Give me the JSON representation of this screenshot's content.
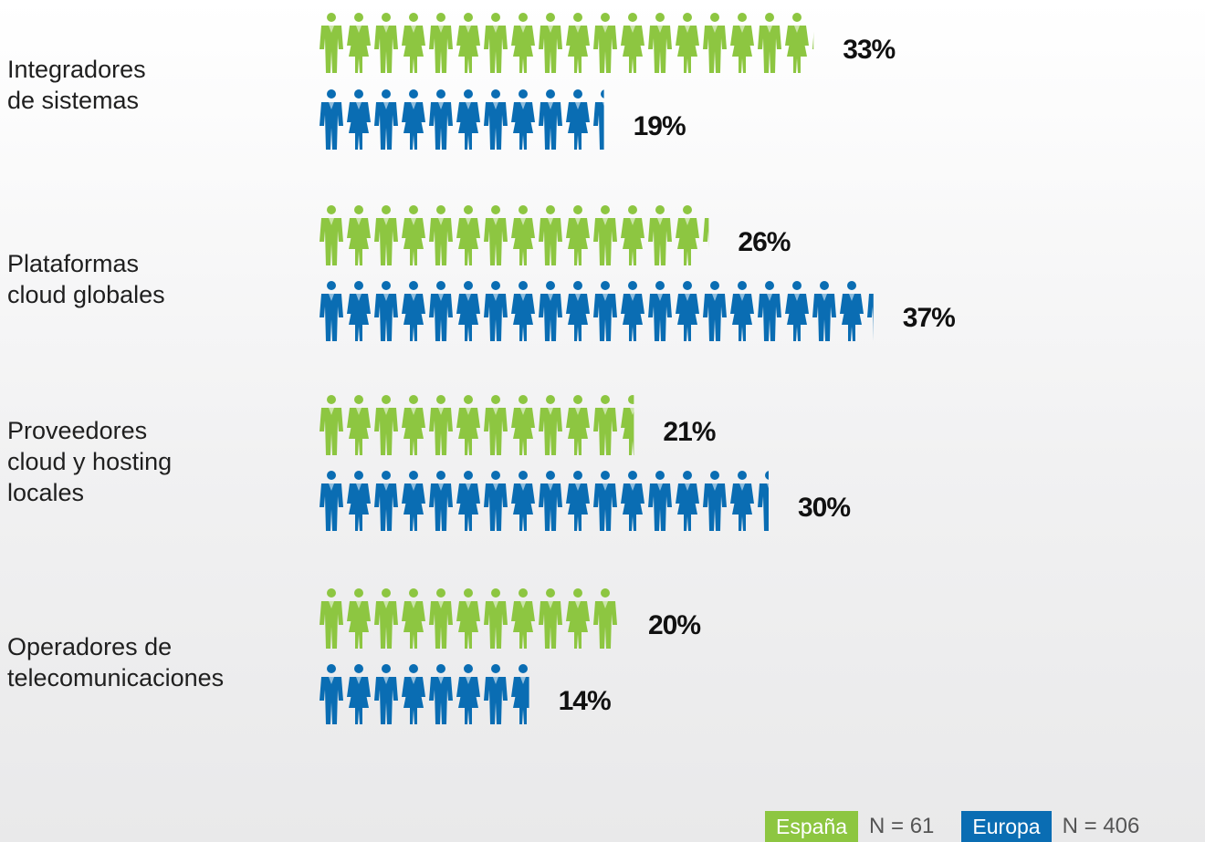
{
  "chart_data": {
    "type": "bar",
    "categories": [
      [
        "Integradores",
        "de sistemas"
      ],
      [
        "Plataformas",
        "cloud globales"
      ],
      [
        "Proveedores",
        "cloud y hosting",
        "locales"
      ],
      [
        "Operadores de",
        "telecomunicaciones"
      ]
    ],
    "series": [
      {
        "name": "España",
        "values": [
          33,
          26,
          21,
          20
        ],
        "labels": [
          "33%",
          "26%",
          "21%",
          "20%"
        ],
        "color": "#8dc641"
      },
      {
        "name": "Europa",
        "values": [
          19,
          37,
          30,
          14
        ],
        "labels": [
          "19%",
          "37%",
          "30%",
          "14%"
        ],
        "color": "#0a6db3"
      }
    ],
    "xlabel": "",
    "ylabel": "",
    "unit": "%",
    "icon": "person-icon"
  },
  "legend": {
    "items": [
      {
        "name": "España",
        "n": "N = 61",
        "color": "#8dc641"
      },
      {
        "name": "Europa",
        "n": "N = 406",
        "color": "#0a6db3"
      }
    ]
  }
}
